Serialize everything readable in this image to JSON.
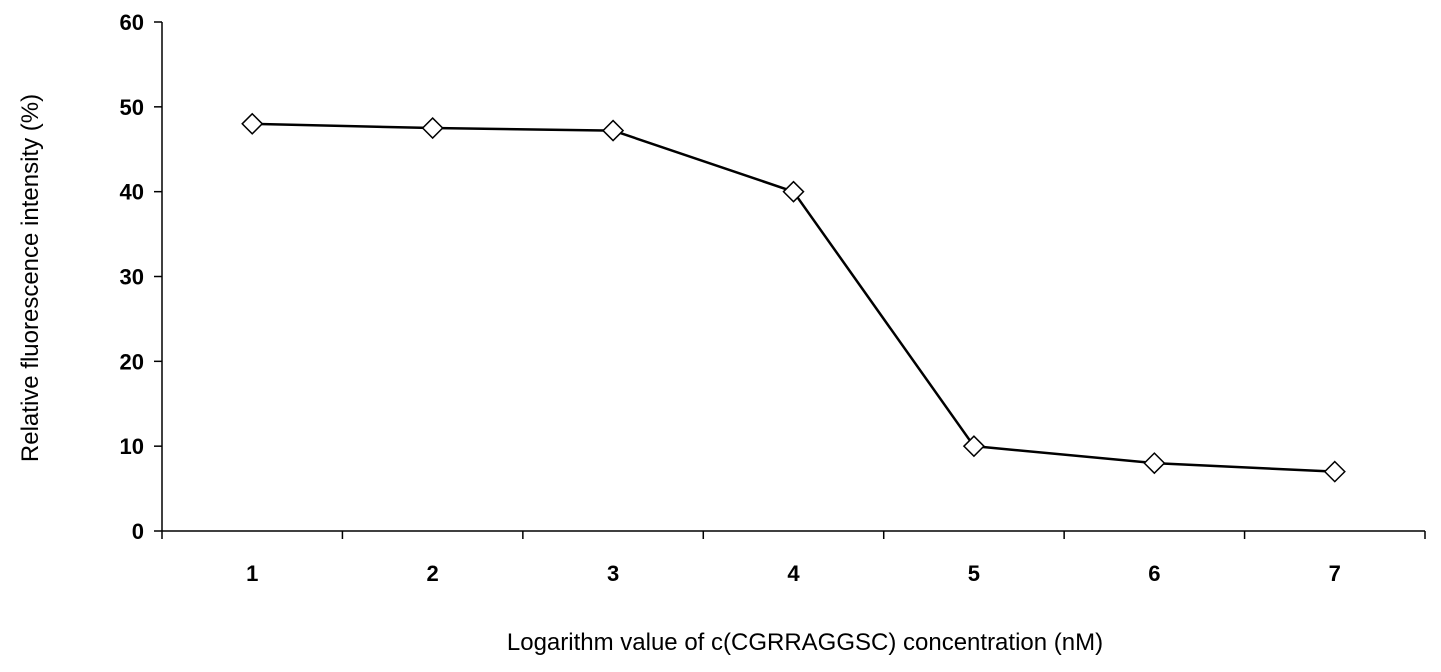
{
  "chart_data": {
    "type": "line",
    "x": [
      1,
      2,
      3,
      4,
      5,
      6,
      7
    ],
    "series": [
      {
        "values": [
          48,
          47.5,
          47.2,
          40,
          10,
          8,
          7
        ],
        "marker": "diamond-open",
        "color": "#000000"
      }
    ],
    "xlabel": "Logarithm value of c(CGRRAGGSC) concentration (nM)",
    "ylabel": "Relative fluorescence intensity (%)",
    "xticks": [
      "1",
      "2",
      "3",
      "4",
      "5",
      "6",
      "7"
    ],
    "yticks": [
      "0",
      "10",
      "20",
      "30",
      "40",
      "50",
      "60"
    ],
    "ylim": [
      0,
      60
    ],
    "xlim": [
      0.5,
      7.5
    ],
    "grid": false,
    "legend": "none"
  }
}
